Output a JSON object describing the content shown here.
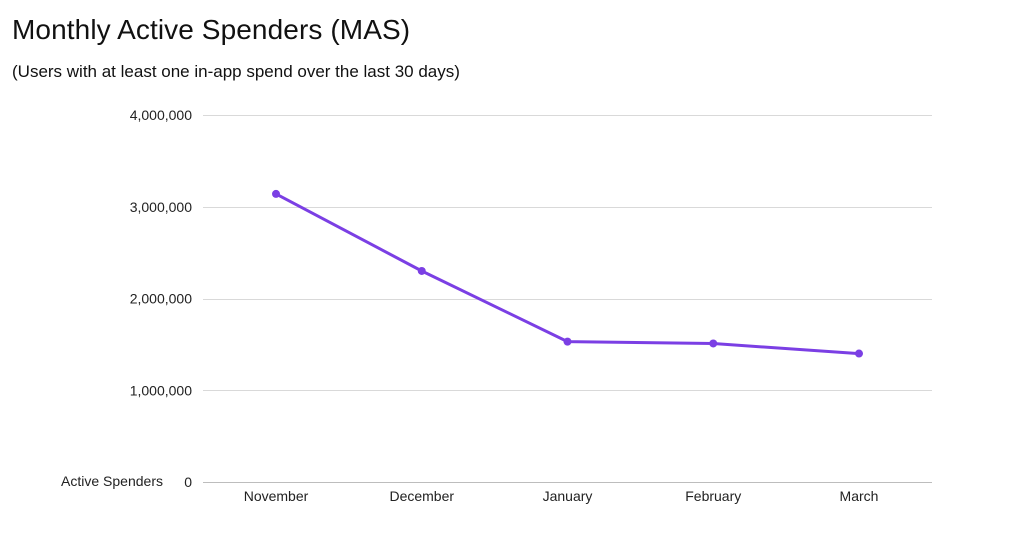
{
  "chart_data": {
    "type": "line",
    "title": "Monthly Active Spenders (MAS)",
    "subtitle": "(Users with at least one in-app spend over the last 30 days)",
    "ylabel": "Active Spenders",
    "xlabel": "",
    "categories": [
      "November",
      "December",
      "January",
      "February",
      "March"
    ],
    "series": [
      {
        "values": [
          3140000,
          2300000,
          1530000,
          1510000,
          1400000
        ]
      }
    ],
    "ylim": [
      0,
      4000000
    ],
    "yticks": [
      0,
      1000000,
      2000000,
      3000000,
      4000000
    ],
    "ytick_labels": [
      "0",
      "1,000,000",
      "2,000,000",
      "3,000,000",
      "4,000,000"
    ],
    "grid": true,
    "legend": "none",
    "colors": {
      "line": "#7b3fe4",
      "grid": "#d9d9d9",
      "text": "#222222"
    }
  }
}
